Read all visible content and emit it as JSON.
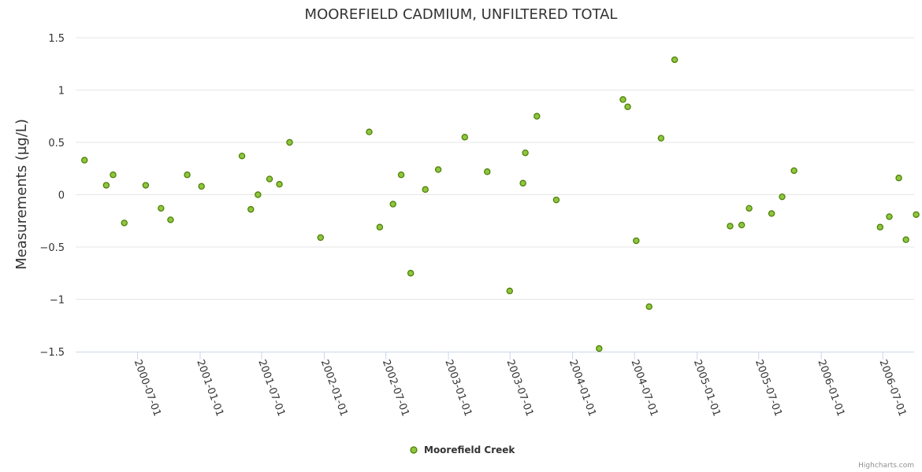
{
  "colors": {
    "series": "#8dc63f",
    "point_stroke": "#4a7a00",
    "grid": "#e6e6e6",
    "axis": "#ccd6eb",
    "text": "#333333",
    "credit": "#909090"
  },
  "credits": "Highcharts.com",
  "chart_data": {
    "type": "scatter",
    "title": "MOOREFIELD CADMIUM, UNFILTERED TOTAL",
    "xlabel": "",
    "ylabel": "Measurements (µg/L)",
    "x_axis_type": "datetime",
    "xlim": [
      "2000-01-01",
      "2006-10-01"
    ],
    "ylim": [
      -1.5,
      1.5
    ],
    "grid": true,
    "legend_position": "bottom-center",
    "x_ticks": [
      "2000-07-01",
      "2001-01-01",
      "2001-07-01",
      "2002-01-01",
      "2002-07-01",
      "2003-01-01",
      "2003-07-01",
      "2004-01-01",
      "2004-07-01",
      "2005-01-01",
      "2005-07-01",
      "2006-01-01",
      "2006-07-01"
    ],
    "y_ticks": [
      {
        "value": 1.5,
        "label": "1.5"
      },
      {
        "value": 1,
        "label": "1"
      },
      {
        "value": 0.5,
        "label": "0.5"
      },
      {
        "value": 0,
        "label": "0"
      },
      {
        "value": -0.5,
        "label": "−0.5"
      },
      {
        "value": -1,
        "label": "−1"
      },
      {
        "value": -1.5,
        "label": "−1.5"
      }
    ],
    "series": [
      {
        "name": "Moorefield Creek",
        "points": [
          {
            "x": "2000-01-27",
            "y": 0.33
          },
          {
            "x": "2000-03-31",
            "y": 0.09
          },
          {
            "x": "2000-04-20",
            "y": 0.19
          },
          {
            "x": "2000-05-23",
            "y": -0.27
          },
          {
            "x": "2000-07-25",
            "y": 0.09
          },
          {
            "x": "2000-09-08",
            "y": -0.13
          },
          {
            "x": "2000-10-06",
            "y": -0.24
          },
          {
            "x": "2000-11-24",
            "y": 0.19
          },
          {
            "x": "2001-01-05",
            "y": 0.08
          },
          {
            "x": "2001-05-04",
            "y": 0.37
          },
          {
            "x": "2001-05-30",
            "y": -0.14
          },
          {
            "x": "2001-06-20",
            "y": 0.0
          },
          {
            "x": "2001-07-24",
            "y": 0.15
          },
          {
            "x": "2001-08-22",
            "y": 0.1
          },
          {
            "x": "2001-09-21",
            "y": 0.5
          },
          {
            "x": "2001-12-21",
            "y": -0.41
          },
          {
            "x": "2002-05-13",
            "y": 0.6
          },
          {
            "x": "2002-06-13",
            "y": -0.31
          },
          {
            "x": "2002-07-22",
            "y": -0.09
          },
          {
            "x": "2002-08-15",
            "y": 0.19
          },
          {
            "x": "2002-09-12",
            "y": -0.75
          },
          {
            "x": "2002-10-25",
            "y": 0.05
          },
          {
            "x": "2002-12-02",
            "y": 0.24
          },
          {
            "x": "2003-02-18",
            "y": 0.55
          },
          {
            "x": "2003-04-25",
            "y": 0.22
          },
          {
            "x": "2003-06-30",
            "y": -0.92
          },
          {
            "x": "2003-08-08",
            "y": 0.11
          },
          {
            "x": "2003-08-15",
            "y": 0.4
          },
          {
            "x": "2003-09-18",
            "y": 0.75
          },
          {
            "x": "2003-11-14",
            "y": -0.05
          },
          {
            "x": "2004-03-19",
            "y": -1.47
          },
          {
            "x": "2004-05-28",
            "y": 0.91
          },
          {
            "x": "2004-06-11",
            "y": 0.84
          },
          {
            "x": "2004-07-06",
            "y": -0.44
          },
          {
            "x": "2004-08-13",
            "y": -1.07
          },
          {
            "x": "2004-09-17",
            "y": 0.54
          },
          {
            "x": "2004-10-27",
            "y": 1.29
          },
          {
            "x": "2005-04-08",
            "y": -0.3
          },
          {
            "x": "2005-05-12",
            "y": -0.29
          },
          {
            "x": "2005-06-03",
            "y": -0.13
          },
          {
            "x": "2005-08-08",
            "y": -0.18
          },
          {
            "x": "2005-09-08",
            "y": -0.02
          },
          {
            "x": "2005-10-13",
            "y": 0.23
          },
          {
            "x": "2006-06-23",
            "y": -0.31
          },
          {
            "x": "2006-07-20",
            "y": -0.21
          },
          {
            "x": "2006-08-17",
            "y": 0.16
          },
          {
            "x": "2006-09-07",
            "y": -0.43
          },
          {
            "x": "2006-10-07",
            "y": -0.19
          }
        ]
      }
    ]
  }
}
